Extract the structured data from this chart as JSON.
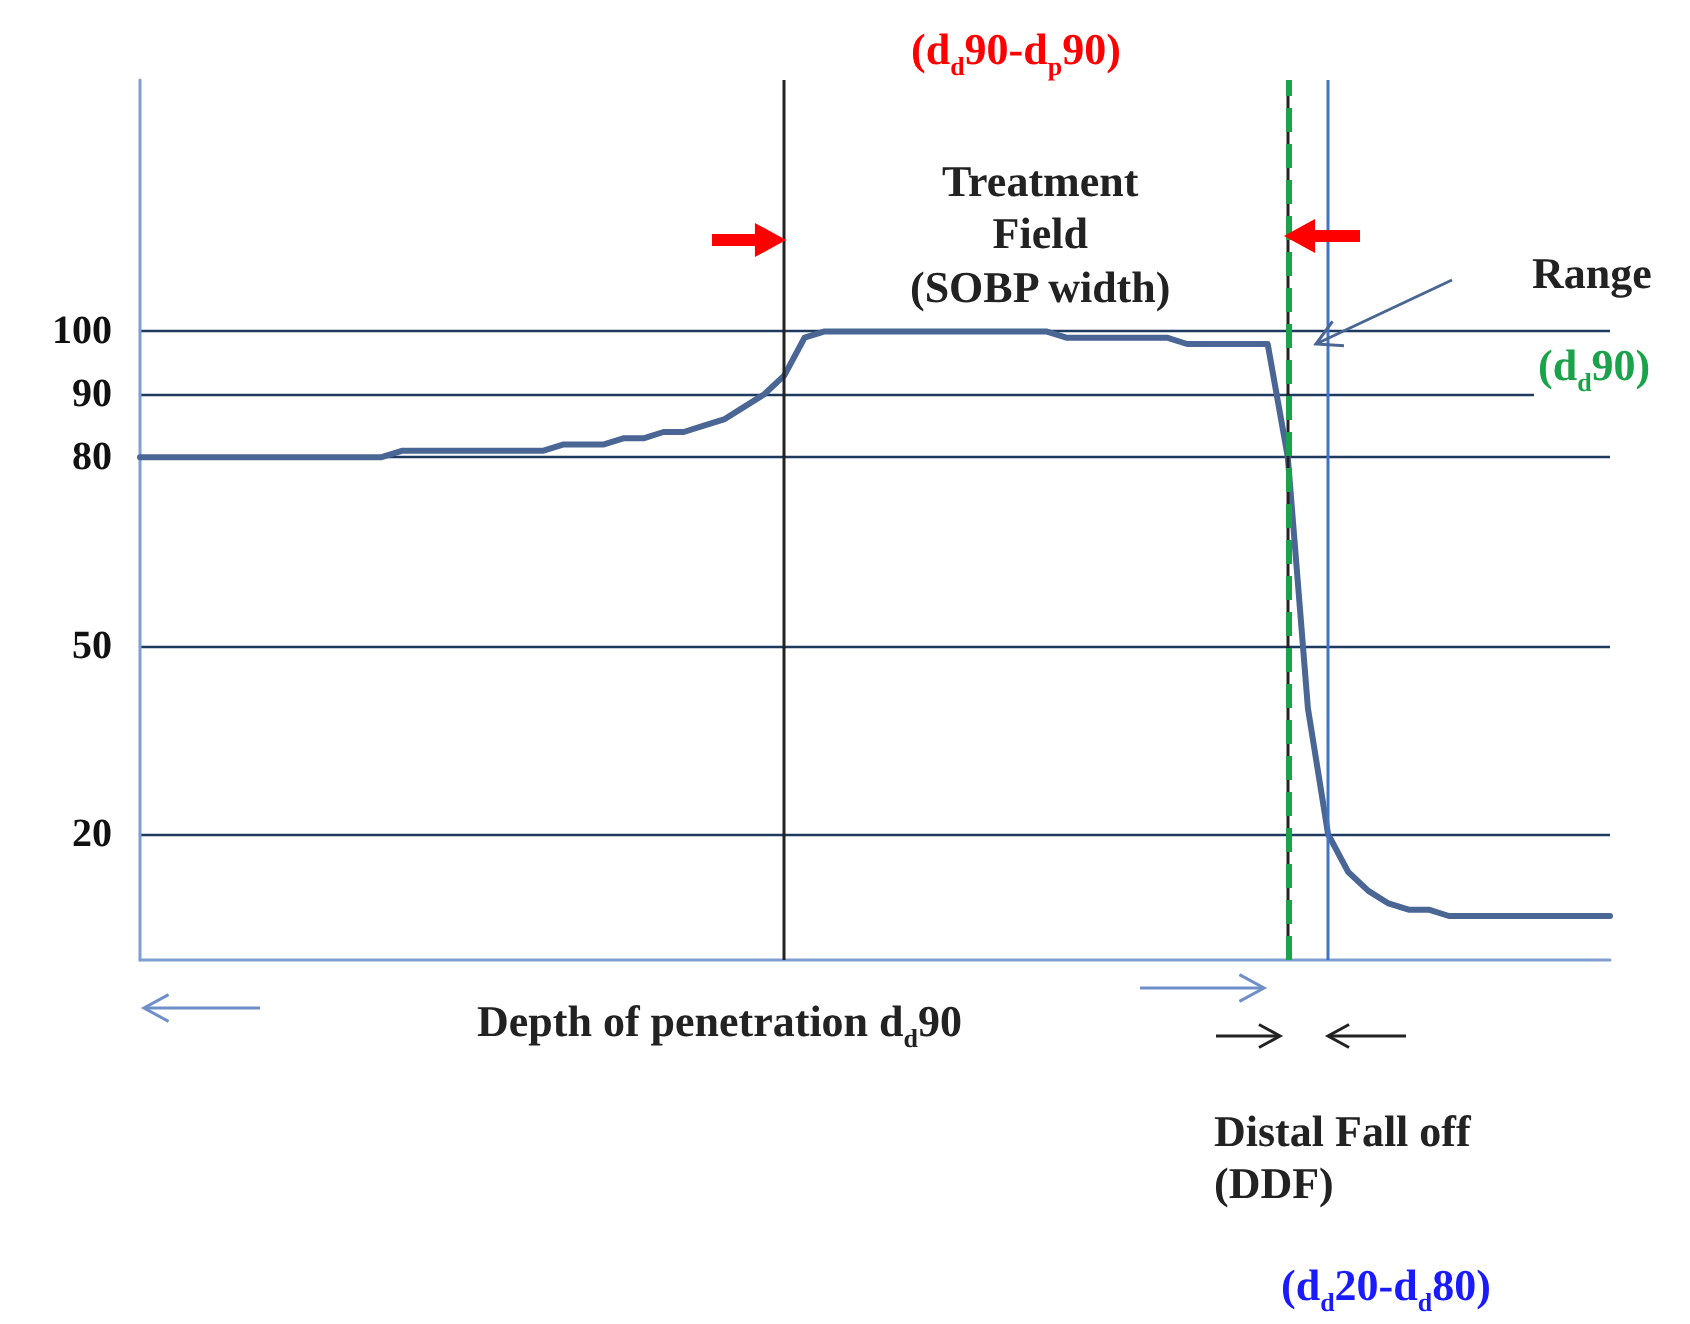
{
  "chart_data": {
    "type": "line",
    "categories": [
      null,
      null,
      null,
      null,
      null,
      null,
      null,
      null,
      null,
      null,
      null,
      null,
      null,
      null,
      null,
      null,
      null,
      null,
      null,
      null,
      null,
      null,
      null,
      null,
      null,
      null,
      null,
      null,
      null,
      null,
      null,
      null,
      null,
      null,
      null,
      null,
      null,
      null,
      null,
      null,
      null,
      null,
      null,
      null,
      null,
      null,
      null,
      null,
      null,
      null,
      null,
      null,
      null,
      null,
      null,
      null,
      null,
      null,
      null,
      null,
      null,
      null,
      null,
      null,
      null,
      null,
      null,
      null,
      null,
      null,
      null,
      null,
      null,
      null
    ],
    "series": [
      {
        "color": "#4a6694",
        "values": [
          80,
          80,
          80,
          80,
          80,
          80,
          80,
          80,
          80,
          80,
          80,
          80,
          80,
          81,
          81,
          81,
          81,
          81,
          81,
          81,
          81,
          82,
          82,
          82,
          83,
          83,
          84,
          84,
          85,
          86,
          88,
          90,
          93,
          99,
          100,
          100,
          100,
          100,
          100,
          100,
          100,
          100,
          100,
          100,
          100,
          100,
          99,
          99,
          99,
          99,
          99,
          99,
          98,
          98,
          98,
          98,
          98,
          80,
          40,
          20,
          14,
          11,
          9,
          8,
          8,
          7,
          7,
          7,
          7,
          7,
          7,
          7,
          7,
          7
        ]
      }
    ],
    "ylim": [
      0,
      140
    ],
    "yticks": [
      20,
      50,
      80,
      90,
      100
    ],
    "grid": "y",
    "tick_labels": "y",
    "marker": "none",
    "line_style": "solid",
    "annotations": [
      "(d$_{d}$90-d$_{p}$90)",
      "Treatment\nField\n(SOBP width)",
      "Range",
      "(d$_{d}$90)",
      "Depth of penetration d$_{d}$90",
      "Distal Fall off\n(DDF)",
      "(d$_{d}$20-d$_{d}$80)"
    ]
  }
}
